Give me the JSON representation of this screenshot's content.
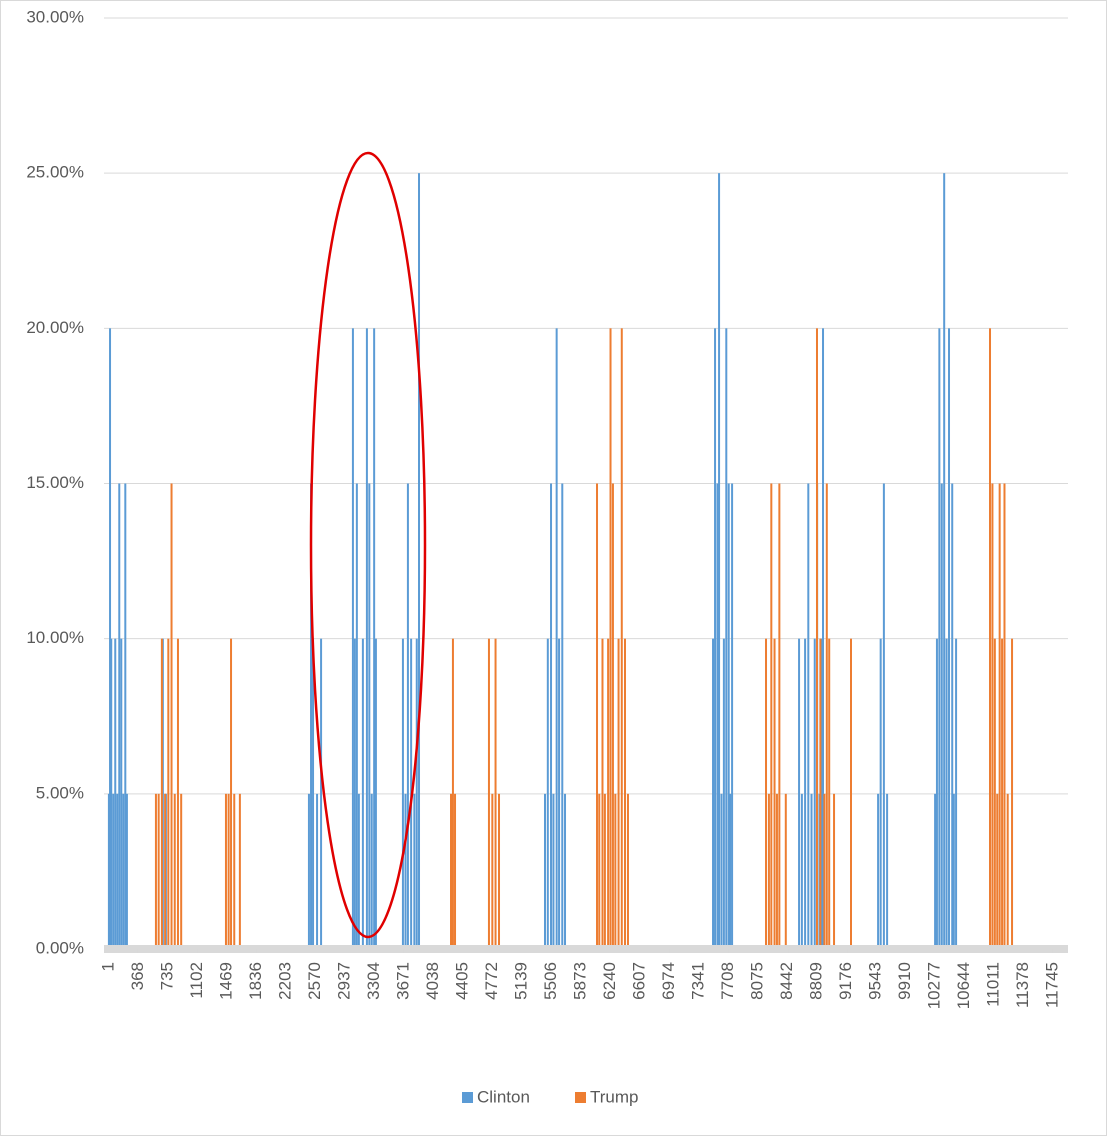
{
  "chart_data": {
    "type": "bar",
    "xlim": [
      -60,
      11930
    ],
    "ylim": [
      0,
      30
    ],
    "xticks": [
      1,
      368,
      735,
      1102,
      1469,
      1836,
      2203,
      2570,
      2937,
      3304,
      3671,
      4038,
      4405,
      4772,
      5139,
      5506,
      5873,
      6240,
      6607,
      6974,
      7341,
      7708,
      8075,
      8442,
      8809,
      9176,
      9543,
      9910,
      10277,
      10644,
      11011,
      11378,
      11745
    ],
    "yticks": [
      {
        "value": 0,
        "label": "0.00%"
      },
      {
        "value": 5,
        "label": "5.00%"
      },
      {
        "value": 10,
        "label": "10.00%"
      },
      {
        "value": 15,
        "label": "15.00%"
      },
      {
        "value": 20,
        "label": "20.00%"
      },
      {
        "value": 25,
        "label": "25.00%"
      },
      {
        "value": 30,
        "label": "30.00%"
      }
    ],
    "grid": true,
    "legend": "bottom",
    "series": [
      {
        "name": "Clinton",
        "color": "#5b9bd5",
        "x": [
          1,
          15,
          30,
          55,
          80,
          105,
          130,
          155,
          180,
          205,
          225,
          672,
          710,
          2489,
          2515,
          2540,
          2590,
          2640,
          3036,
          3060,
          3085,
          3110,
          3160,
          3210,
          3240,
          3270,
          3300,
          3322,
          3658,
          3690,
          3720,
          3760,
          3800,
          3830,
          3858,
          5425,
          5460,
          5500,
          5530,
          5570,
          5600,
          5640,
          5674,
          7515,
          7540,
          7570,
          7590,
          7620,
          7650,
          7680,
          7710,
          7730,
          7752,
          8585,
          8620,
          8660,
          8700,
          8740,
          8780,
          8810,
          8840,
          8860,
          8883,
          9568,
          9600,
          9640,
          9680,
          10277,
          10300,
          10330,
          10360,
          10390,
          10420,
          10450,
          10490,
          10510,
          10538
        ],
        "values": [
          5,
          20,
          10,
          5,
          10,
          5,
          15,
          10,
          5,
          15,
          5,
          10,
          5,
          5,
          15,
          10,
          5,
          10,
          20,
          10,
          15,
          5,
          10,
          20,
          15,
          5,
          20,
          10,
          10,
          5,
          15,
          10,
          5,
          10,
          25,
          5,
          10,
          15,
          5,
          20,
          10,
          15,
          5,
          10,
          20,
          15,
          25,
          5,
          10,
          20,
          15,
          5,
          15,
          10,
          5,
          10,
          15,
          5,
          10,
          15,
          5,
          10,
          20,
          5,
          10,
          15,
          5,
          5,
          10,
          20,
          15,
          25,
          10,
          20,
          15,
          5,
          10
        ]
      },
      {
        "name": "Trump",
        "color": "#ed7d31",
        "x": [
          586,
          620,
          660,
          700,
          740,
          780,
          820,
          860,
          900,
          1457,
          1490,
          1520,
          1560,
          1630,
          4256,
          4280,
          4306,
          4728,
          4770,
          4810,
          4853,
          6072,
          6100,
          6140,
          6170,
          6210,
          6240,
          6270,
          6300,
          6340,
          6380,
          6420,
          6457,
          8174,
          8210,
          8240,
          8280,
          8310,
          8340,
          8420,
          8808,
          8850,
          8900,
          8930,
          8960,
          9020,
          9231,
          10960,
          10990,
          11020,
          11050,
          11080,
          11110,
          11140,
          11180,
          11234
        ],
        "values": [
          5,
          5,
          10,
          5,
          10,
          15,
          5,
          10,
          5,
          5,
          5,
          10,
          5,
          5,
          5,
          10,
          5,
          10,
          5,
          10,
          5,
          15,
          5,
          10,
          5,
          10,
          20,
          15,
          5,
          10,
          20,
          10,
          5,
          10,
          5,
          15,
          10,
          5,
          15,
          5,
          20,
          10,
          5,
          15,
          10,
          5,
          10,
          20,
          15,
          10,
          5,
          15,
          10,
          15,
          5,
          10
        ]
      }
    ]
  }
}
